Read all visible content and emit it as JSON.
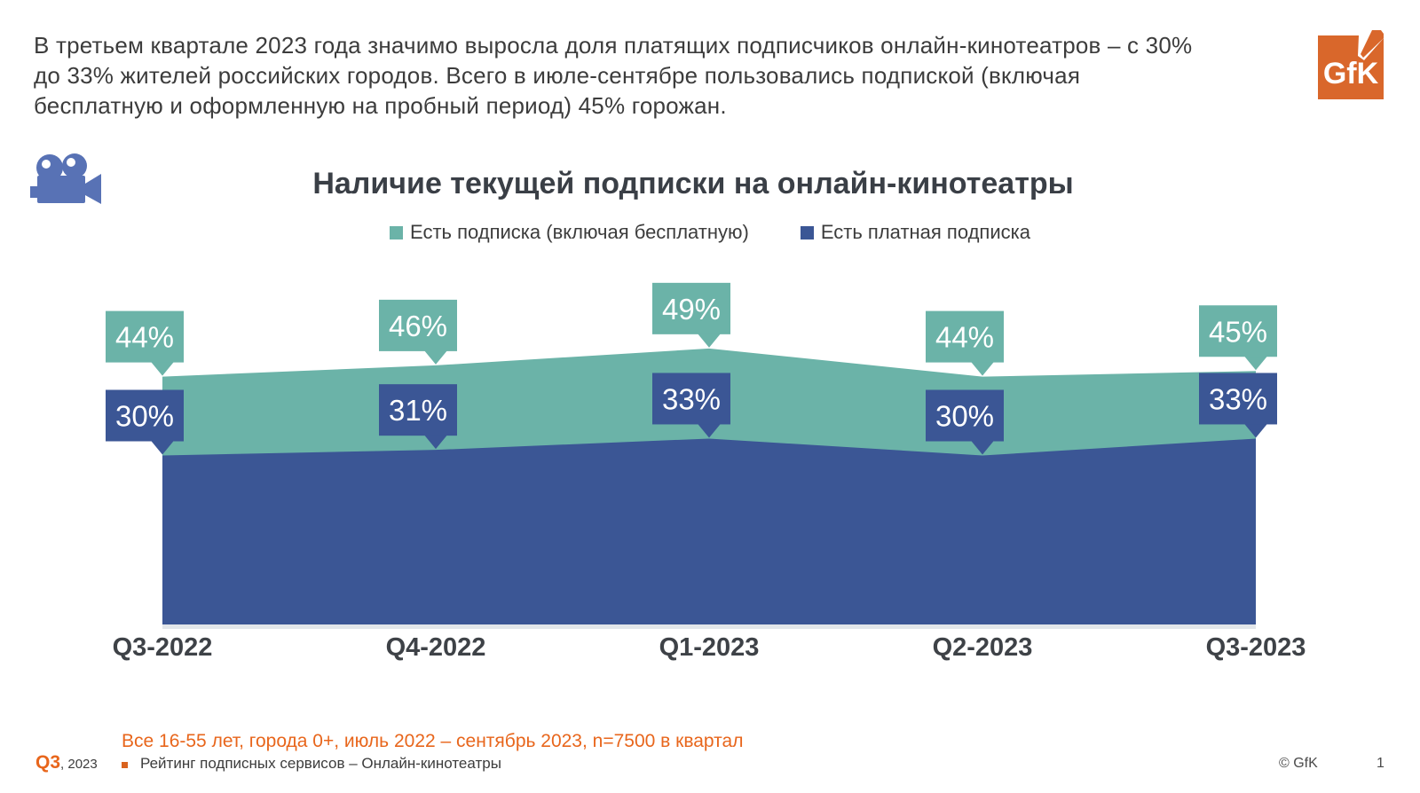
{
  "header": {
    "summary": "В третьем квартале 2023 года значимо выросла доля платящих подписчиков онлайн-кинотеатров – с 30% до 33% жителей российских городов. Всего в июле-сентябре пользовались подпиской (включая бесплатную и оформленную на пробный период) 45% горожан.",
    "logo_text": "GfK"
  },
  "chart_data": {
    "type": "area",
    "title": "Наличие текущей подписки на онлайн-кинотеатры",
    "categories": [
      "Q3-2022",
      "Q4-2022",
      "Q1-2023",
      "Q2-2023",
      "Q3-2023"
    ],
    "series": [
      {
        "name": "Есть подписка (включая бесплатную)",
        "values": [
          44,
          46,
          49,
          44,
          45
        ],
        "color": "#6bb3a8"
      },
      {
        "name": "Есть платная подписка",
        "values": [
          30,
          31,
          33,
          30,
          33
        ],
        "color": "#3b5695"
      }
    ],
    "unit": "%",
    "ylim": [
      0,
      55
    ],
    "grid": false,
    "legend_position": "top",
    "data_labels": "callout-boxes"
  },
  "footer": {
    "note": "Все 16-55 лет, города 0+, июль 2022 – сентябрь 2023, n=7500 в квартал",
    "quarter": "Q3",
    "year": ", 2023",
    "report": "Рейтинг подписных сервисов – Онлайн-кинотеатры",
    "copyright": "© GfK",
    "page": "1"
  },
  "colors": {
    "accent_orange": "#e8661c",
    "logo_orange": "#d9672b",
    "teal": "#6bb3a8",
    "navy": "#3b5695",
    "camera_blue": "#5872b5",
    "text_dark": "#3c3c3c"
  }
}
